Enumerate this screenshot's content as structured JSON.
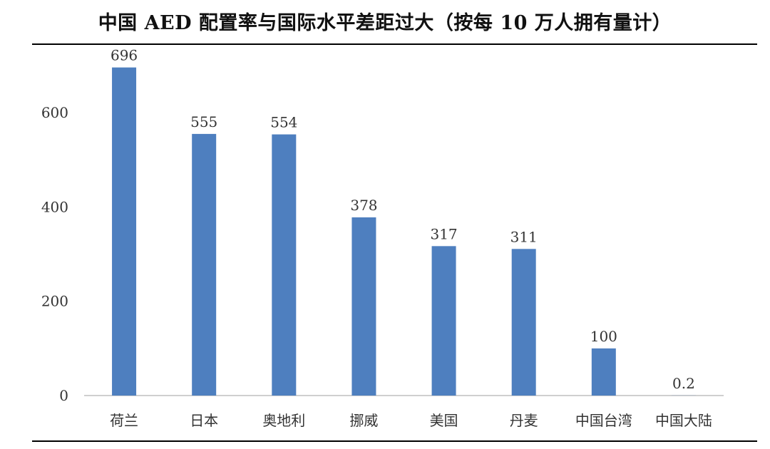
{
  "chart_data": {
    "type": "bar",
    "title": "中国 AED 配置率与国际水平差距过大（按每 10 万人拥有量计）",
    "categories": [
      "荷兰",
      "日本",
      "奥地利",
      "挪威",
      "美国",
      "丹麦",
      "中国台湾",
      "中国大陆"
    ],
    "series": [
      {
        "values": [
          696,
          555,
          554,
          378,
          317,
          311,
          100,
          0.2
        ],
        "data_labels": [
          "696",
          "555",
          "554",
          "378",
          "317",
          "311",
          "100",
          "0.2"
        ]
      }
    ],
    "yticks": [
      "0",
      "200",
      "400",
      "600"
    ],
    "ylim": [
      0,
      700
    ],
    "xlabel": "",
    "ylabel": "",
    "grid": false,
    "legend": "none",
    "bar_color": "#4e7fbf",
    "axis_color": "#bfbfbf",
    "rule_color": "#000000"
  }
}
